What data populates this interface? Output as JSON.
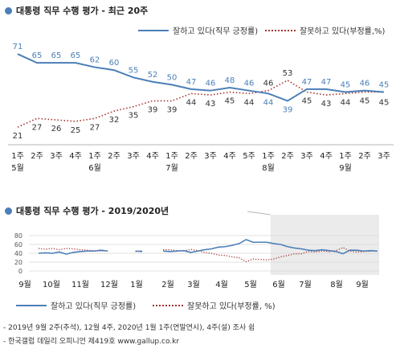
{
  "chart_data": [
    {
      "type": "line",
      "title": "대통령 직무 수행 평가 - 최근 20주",
      "x": [
        "1주\n5월",
        "2주",
        "3주",
        "4주",
        "1주\n6월",
        "2주",
        "3주",
        "4주",
        "1주\n7월",
        "2주",
        "3주",
        "4주",
        "5주",
        "1주\n8월",
        "2주",
        "3주",
        "4주",
        "1주\n9월",
        "2주",
        "3주"
      ],
      "series": [
        {
          "name": "잘하고 있다(직무 긍정률)",
          "style": "solid",
          "color": "#4b7fb8",
          "values": [
            71,
            65,
            65,
            65,
            62,
            60,
            55,
            52,
            50,
            47,
            46,
            48,
            46,
            44,
            39,
            47,
            47,
            45,
            46,
            45
          ]
        },
        {
          "name": "잘못하고 있다(부정률, %)",
          "style": "dotted",
          "color": "#a5342f",
          "values": [
            21,
            27,
            26,
            25,
            27,
            32,
            35,
            39,
            39,
            44,
            43,
            45,
            44,
            46,
            53,
            45,
            43,
            44,
            45,
            45
          ]
        }
      ],
      "ylim": [
        0,
        80
      ]
    },
    {
      "type": "line",
      "title": "대통령 직무 수행 평가 - 2019/2020년",
      "yticks": [
        0,
        20,
        40,
        60,
        80
      ],
      "ylim": [
        0,
        80
      ],
      "months": [
        "9월",
        "10월",
        "11월",
        "12월",
        "1월",
        "2월",
        "3월",
        "4월",
        "5월",
        "6월",
        "7월",
        "8월",
        "9월"
      ],
      "highlight_range": [
        34,
        53
      ],
      "series": [
        {
          "name": "잘하고 있다(직무 긍정률)",
          "style": "solid",
          "color": "#4b7fb8",
          "values": [
            40,
            41,
            40,
            43,
            38,
            42,
            44,
            45,
            45,
            47,
            45,
            null,
            null,
            null,
            45,
            44,
            null,
            null,
            45,
            44,
            45,
            46,
            42,
            45,
            48,
            50,
            54,
            55,
            58,
            62,
            71,
            65,
            65,
            65,
            62,
            60,
            55,
            52,
            50,
            47,
            46,
            48,
            46,
            44,
            39,
            47,
            47,
            45,
            46,
            45
          ]
        },
        {
          "name": "잘못하고 있다(부정률, %)",
          "style": "dotted",
          "color": "#a5342f",
          "values": [
            51,
            49,
            51,
            48,
            51,
            50,
            48,
            47,
            46,
            45,
            46,
            null,
            null,
            null,
            44,
            46,
            null,
            null,
            48,
            48,
            46,
            45,
            49,
            46,
            42,
            40,
            36,
            35,
            32,
            30,
            21,
            27,
            26,
            25,
            27,
            32,
            35,
            39,
            39,
            44,
            43,
            45,
            44,
            46,
            53,
            45,
            43,
            44,
            45,
            45
          ]
        }
      ],
      "legend": [
        "잘하고 있다(직무 긍정률)",
        "잘못하고 있다(부정률, %)"
      ]
    }
  ],
  "top_chart": {
    "title": "대통령 직무 수행 평가 - 최근 20주",
    "legend_pos": "잘하고 있다(직무 긍정률)",
    "legend_neg": "잘못하고 있다(부정률,%)"
  },
  "bottom_chart": {
    "title": "대통령 직무 수행 평가 - 2019/2020년",
    "legend_pos": "잘하고 있다(직무 긍정률)",
    "legend_neg": "잘못하고 있다(부정률, %)"
  },
  "notes": [
    "- 2019년 9월 2주(추석), 12월 4주, 2020년 1월 1주(연말연시), 4주(설) 조사 쉼",
    "- 한국갤럽 데일리 오피니언 제419호 www.gallup.co.kr"
  ]
}
